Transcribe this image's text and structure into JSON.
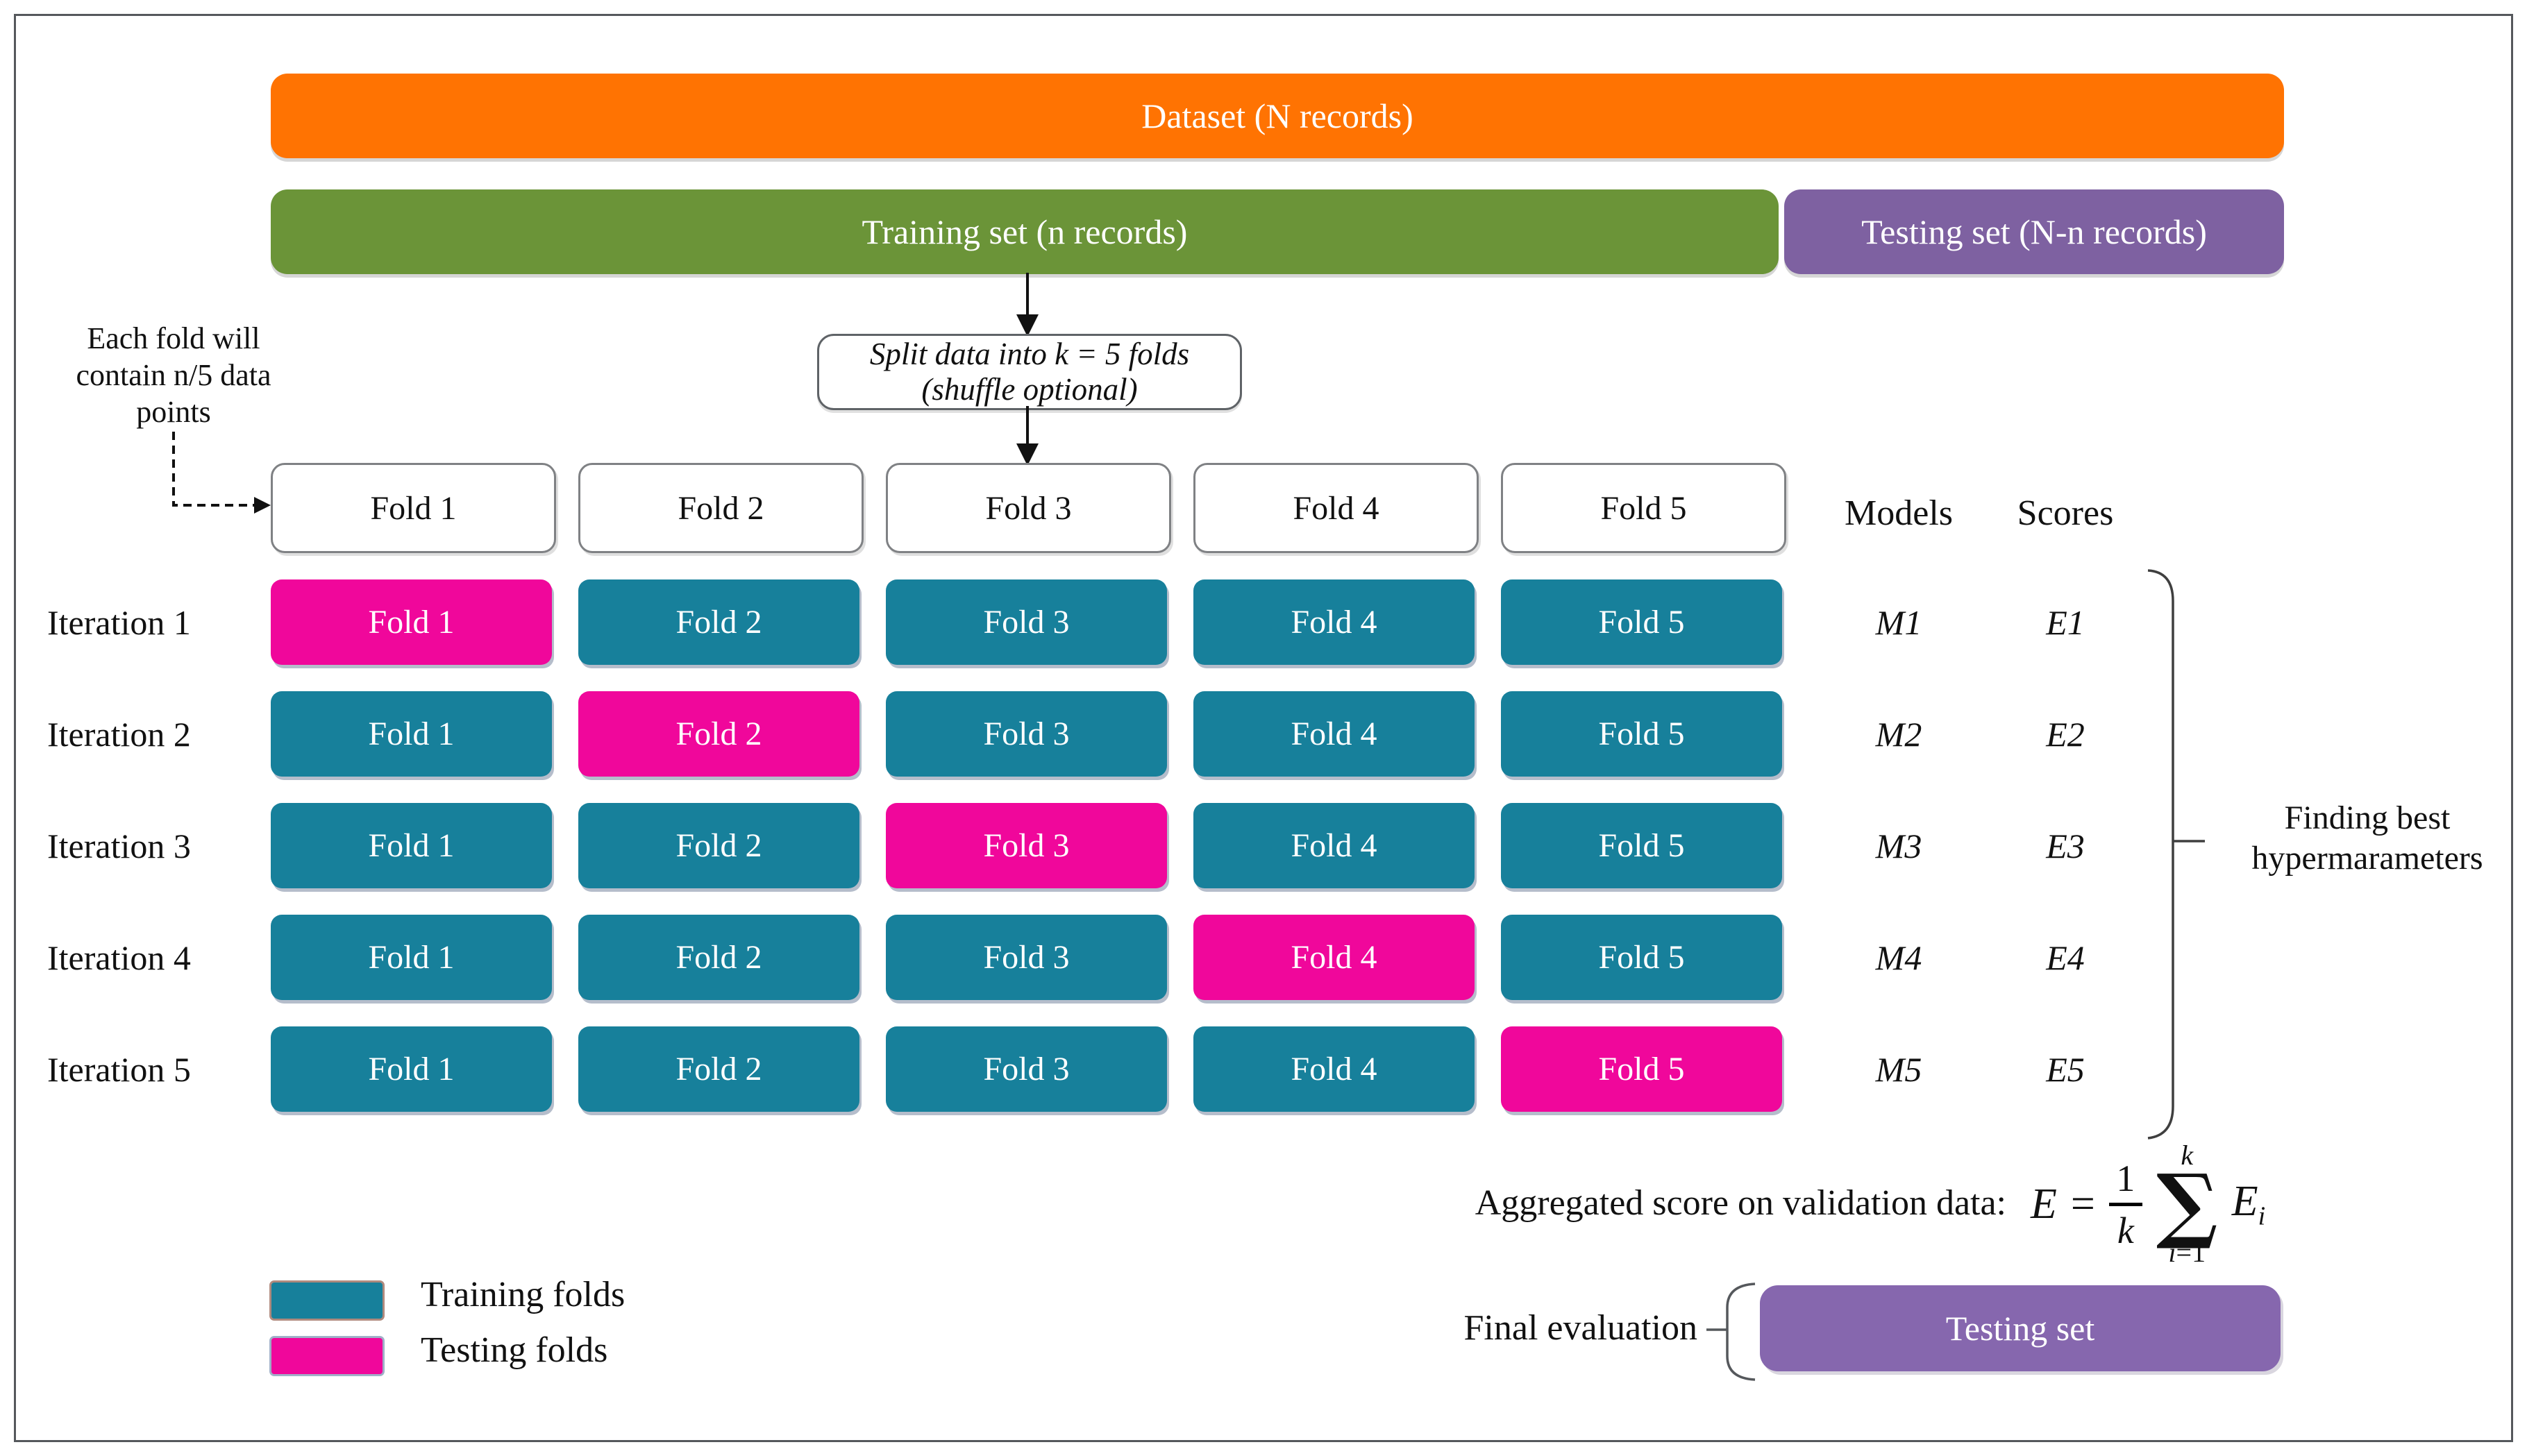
{
  "colors": {
    "orange": "#FF7302",
    "green": "#6B9438",
    "purple_top": "#7E61A1",
    "purple_bottom": "#8667AE",
    "teal": "#17809B",
    "pink": "#F0079B"
  },
  "top_flow": {
    "dataset_label": "Dataset (N records)",
    "training_label": "Training set (n records)",
    "testing_label": "Testing set (N-n records)",
    "split_line1": "Split data into k = 5 folds",
    "split_line2": "(shuffle optional)"
  },
  "note": {
    "line1": "Each fold will",
    "line2": "contain n/5 data",
    "line3": "points"
  },
  "grid": {
    "fold_headers": [
      "Fold 1",
      "Fold 2",
      "Fold 3",
      "Fold 4",
      "Fold 5"
    ],
    "models_header": "Models",
    "scores_header": "Scores",
    "rows": [
      {
        "label": "Iteration 1",
        "model": "M1",
        "score": "E1",
        "test_fold": 1,
        "cells": [
          "Fold 1",
          "Fold 2",
          "Fold 3",
          "Fold 4",
          "Fold 5"
        ]
      },
      {
        "label": "Iteration 2",
        "model": "M2",
        "score": "E2",
        "test_fold": 2,
        "cells": [
          "Fold 1",
          "Fold 2",
          "Fold 3",
          "Fold 4",
          "Fold 5"
        ]
      },
      {
        "label": "Iteration 3",
        "model": "M3",
        "score": "E3",
        "test_fold": 3,
        "cells": [
          "Fold 1",
          "Fold 2",
          "Fold 3",
          "Fold 4",
          "Fold 5"
        ]
      },
      {
        "label": "Iteration 4",
        "model": "M4",
        "score": "E4",
        "test_fold": 4,
        "cells": [
          "Fold 1",
          "Fold 2",
          "Fold 3",
          "Fold 4",
          "Fold 5"
        ]
      },
      {
        "label": "Iteration 5",
        "model": "M5",
        "score": "E5",
        "test_fold": 5,
        "cells": [
          "Fold 1",
          "Fold 2",
          "Fold 3",
          "Fold 4",
          "Fold 5"
        ]
      }
    ]
  },
  "bracket_label": {
    "line1": "Finding best",
    "line2": "hypermarameters"
  },
  "formula": {
    "prefix": "Aggregated score on validation data:",
    "lhs": "E",
    "equals": "=",
    "numerator": "1",
    "denominator": "k",
    "sum_upper": "k",
    "sigma": "∑",
    "sum_lower_i": "i",
    "sum_lower_rest": "=1",
    "term_base": "E",
    "term_sub": "i"
  },
  "legend": [
    {
      "label": "Training folds",
      "type": "train"
    },
    {
      "label": "Testing folds",
      "type": "test"
    }
  ],
  "final_eval": {
    "label": "Final evaluation",
    "box_label": "Testing set"
  }
}
